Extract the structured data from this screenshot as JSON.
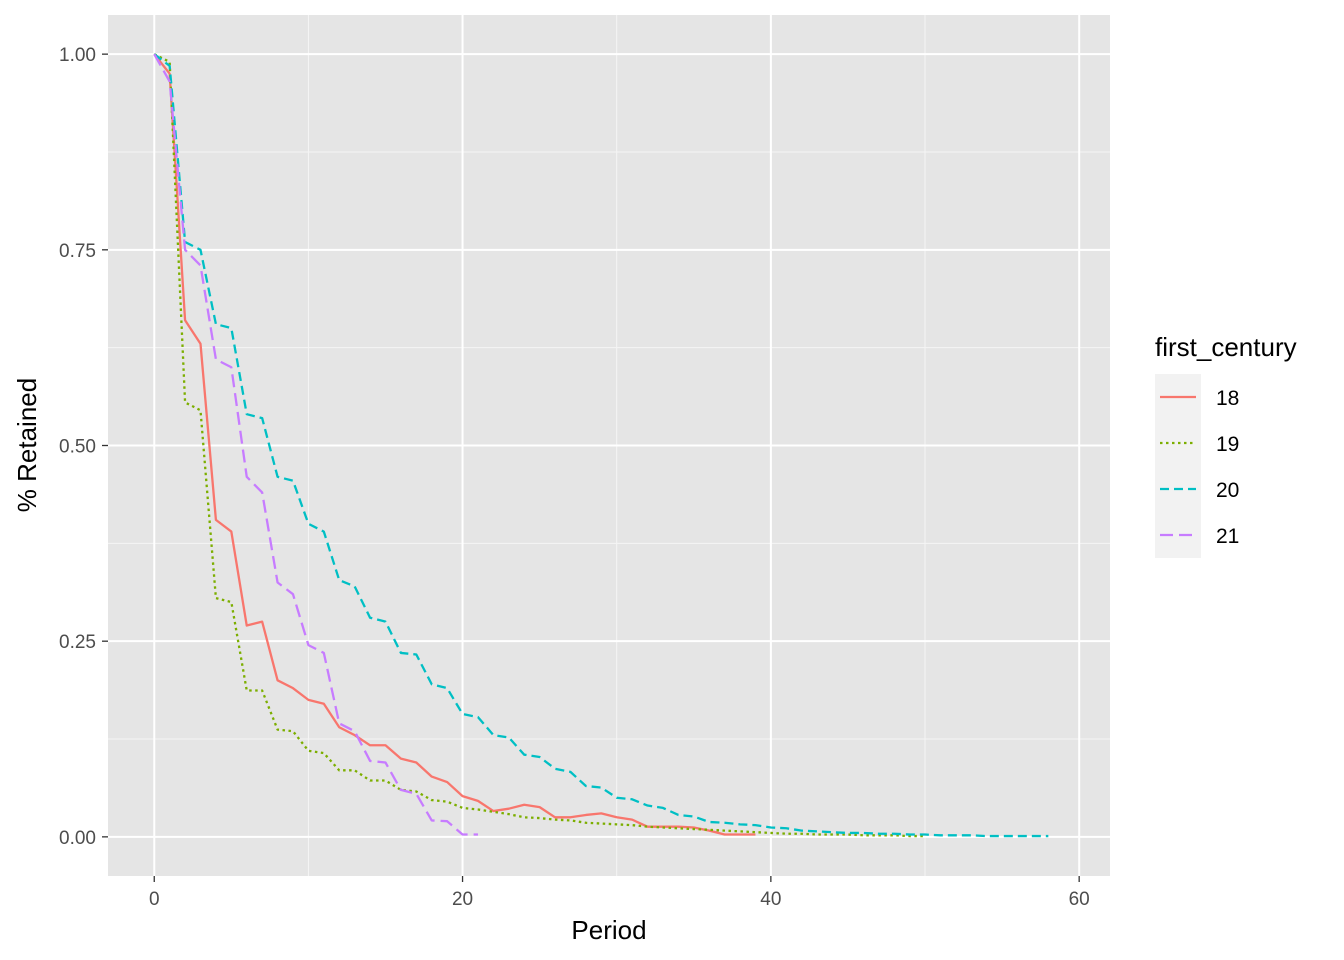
{
  "chart_data": {
    "type": "line",
    "title": "",
    "xlabel": "Period",
    "ylabel": "% Retained",
    "xlim": [
      -3,
      62
    ],
    "ylim": [
      -0.05,
      1.05
    ],
    "x_ticks": [
      0,
      20,
      40,
      60
    ],
    "x_tick_labels": [
      "0",
      "20",
      "40",
      "60"
    ],
    "y_ticks": [
      0,
      0.25,
      0.5,
      0.75,
      1.0
    ],
    "y_tick_labels": [
      "0.00",
      "0.25",
      "0.50",
      "0.75",
      "1.00"
    ],
    "grid": true,
    "panel_background": "#e5e5e5",
    "legend": {
      "title": "first_century",
      "position": "right",
      "entries": [
        "18",
        "19",
        "20",
        "21"
      ]
    },
    "series": [
      {
        "name": "18",
        "color": "#f8766d",
        "linetype": "solid",
        "x": [
          0,
          1,
          2,
          3,
          4,
          5,
          6,
          7,
          8,
          9,
          10,
          11,
          12,
          13,
          14,
          15,
          16,
          17,
          18,
          19,
          20,
          21,
          22,
          23,
          24,
          25,
          26,
          27,
          28,
          29,
          30,
          31,
          32,
          33,
          34,
          35,
          36,
          37,
          38,
          39
        ],
        "y": [
          1.0,
          0.975,
          0.66,
          0.63,
          0.405,
          0.39,
          0.27,
          0.275,
          0.2,
          0.19,
          0.175,
          0.17,
          0.14,
          0.13,
          0.117,
          0.117,
          0.1,
          0.095,
          0.077,
          0.07,
          0.052,
          0.046,
          0.033,
          0.036,
          0.041,
          0.038,
          0.025,
          0.025,
          0.028,
          0.03,
          0.025,
          0.022,
          0.013,
          0.013,
          0.013,
          0.012,
          0.008,
          0.003,
          0.003,
          0.003
        ]
      },
      {
        "name": "19",
        "color": "#7cae00",
        "linetype": "dotted",
        "x": [
          0,
          1,
          2,
          3,
          4,
          5,
          6,
          7,
          8,
          9,
          10,
          11,
          12,
          13,
          14,
          15,
          16,
          17,
          18,
          19,
          20,
          21,
          22,
          23,
          24,
          25,
          26,
          27,
          28,
          29,
          30,
          31,
          32,
          33,
          34,
          35,
          36,
          37,
          38,
          39,
          40,
          41,
          42,
          43,
          44,
          45,
          46,
          47,
          48,
          49,
          50
        ],
        "y": [
          1.0,
          0.99,
          0.555,
          0.545,
          0.305,
          0.3,
          0.187,
          0.187,
          0.137,
          0.135,
          0.11,
          0.107,
          0.085,
          0.085,
          0.072,
          0.072,
          0.06,
          0.058,
          0.047,
          0.045,
          0.037,
          0.035,
          0.032,
          0.029,
          0.025,
          0.024,
          0.022,
          0.021,
          0.018,
          0.017,
          0.016,
          0.015,
          0.013,
          0.012,
          0.011,
          0.01,
          0.009,
          0.008,
          0.007,
          0.006,
          0.005,
          0.004,
          0.004,
          0.003,
          0.003,
          0.003,
          0.002,
          0.002,
          0.002,
          0.001,
          0.001
        ]
      },
      {
        "name": "20",
        "color": "#00bfc4",
        "linetype": "dashed",
        "x": [
          0,
          1,
          2,
          3,
          4,
          5,
          6,
          7,
          8,
          9,
          10,
          11,
          12,
          13,
          14,
          15,
          16,
          17,
          18,
          19,
          20,
          21,
          22,
          23,
          24,
          25,
          26,
          27,
          28,
          29,
          30,
          31,
          32,
          33,
          34,
          35,
          36,
          37,
          38,
          39,
          40,
          41,
          42,
          43,
          44,
          45,
          46,
          47,
          48,
          49,
          50,
          51,
          52,
          53,
          54,
          55,
          56,
          57,
          58
        ],
        "y": [
          1.0,
          0.985,
          0.76,
          0.75,
          0.655,
          0.65,
          0.54,
          0.535,
          0.46,
          0.455,
          0.4,
          0.39,
          0.328,
          0.32,
          0.28,
          0.275,
          0.235,
          0.233,
          0.195,
          0.19,
          0.157,
          0.153,
          0.13,
          0.127,
          0.105,
          0.102,
          0.087,
          0.083,
          0.065,
          0.063,
          0.05,
          0.048,
          0.04,
          0.037,
          0.028,
          0.026,
          0.019,
          0.018,
          0.016,
          0.015,
          0.012,
          0.011,
          0.008,
          0.007,
          0.006,
          0.005,
          0.005,
          0.004,
          0.004,
          0.003,
          0.003,
          0.002,
          0.002,
          0.002,
          0.001,
          0.001,
          0.001,
          0.001,
          0.001
        ]
      },
      {
        "name": "21",
        "color": "#c77cff",
        "linetype": "longdash",
        "x": [
          0,
          1,
          2,
          3,
          4,
          5,
          6,
          7,
          8,
          9,
          10,
          11,
          12,
          13,
          14,
          15,
          16,
          17,
          18,
          19,
          20,
          21
        ],
        "y": [
          1.0,
          0.965,
          0.75,
          0.73,
          0.61,
          0.6,
          0.46,
          0.44,
          0.325,
          0.31,
          0.245,
          0.235,
          0.145,
          0.135,
          0.097,
          0.095,
          0.06,
          0.055,
          0.021,
          0.02,
          0.003,
          0.003
        ]
      }
    ]
  }
}
